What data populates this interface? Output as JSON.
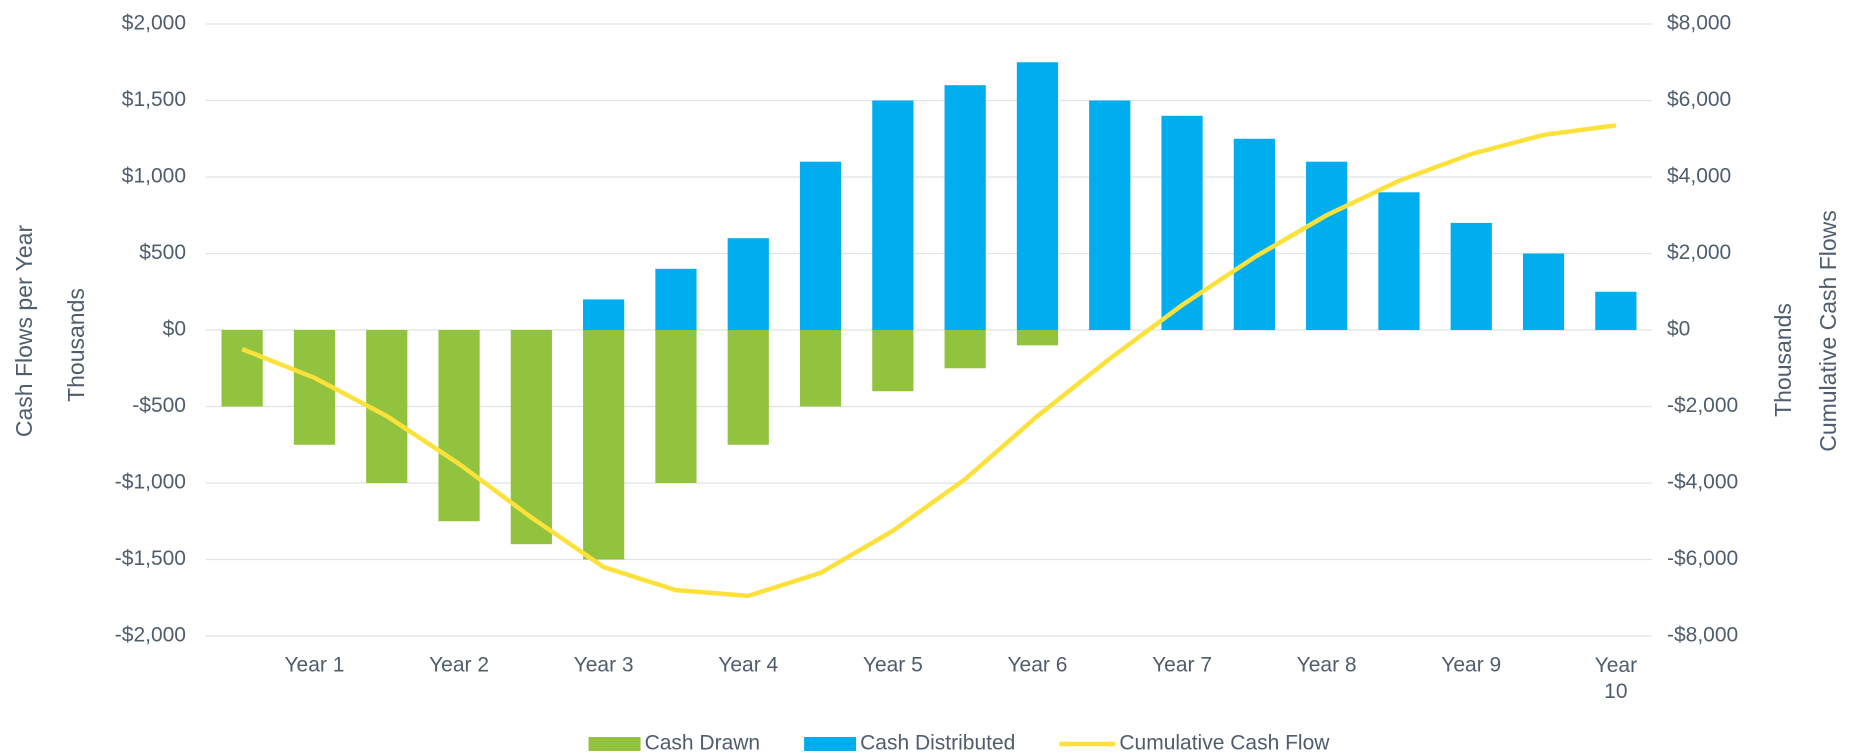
{
  "chart_data": {
    "type": "bar",
    "categories": [
      null,
      "Year 1",
      null,
      "Year 2",
      null,
      "Year 3",
      null,
      "Year 4",
      null,
      "Year 5",
      null,
      "Year 6",
      null,
      "Year 7",
      null,
      "Year 8",
      null,
      "Year 9",
      null,
      "Year 10"
    ],
    "series": [
      {
        "name": "Cash Drawn",
        "color": "#92c33e",
        "type": "bar",
        "values": [
          -500,
          -750,
          -1000,
          -1250,
          -1400,
          -1500,
          -1000,
          -750,
          -500,
          -400,
          -250,
          -100,
          null,
          null,
          null,
          null,
          null,
          null,
          null,
          null
        ]
      },
      {
        "name": "Cash Distributed",
        "color": "#00adee",
        "type": "bar",
        "values": [
          null,
          null,
          null,
          null,
          null,
          200,
          400,
          600,
          1100,
          1500,
          1600,
          1750,
          1500,
          1400,
          1250,
          1100,
          900,
          700,
          500,
          250
        ]
      },
      {
        "name": "Cumulative Cash Flow",
        "color": "#fde13b",
        "type": "line",
        "axis": "y2",
        "values": [
          -500,
          -1250,
          -2250,
          -3500,
          -4900,
          -6200,
          -6800,
          -6950,
          -6350,
          -5250,
          -3900,
          -2250,
          -750,
          650,
          1900,
          3000,
          3900,
          4600,
          5100,
          5350
        ]
      }
    ],
    "ylim": [
      -2000,
      2000
    ],
    "yticks": [
      {
        "value": -2000,
        "label": "-$2,000"
      },
      {
        "value": -1500,
        "label": "-$1,500"
      },
      {
        "value": -1000,
        "label": "-$1,000"
      },
      {
        "value": -500,
        "label": "-$500"
      },
      {
        "value": 0,
        "label": "$0"
      },
      {
        "value": 500,
        "label": "$500"
      },
      {
        "value": 1000,
        "label": "$1,000"
      },
      {
        "value": 1500,
        "label": "$1,500"
      },
      {
        "value": 2000,
        "label": "$2,000"
      }
    ],
    "y2lim": [
      -8000,
      8000
    ],
    "y2ticks": [
      {
        "value": -8000,
        "label": "-$8,000"
      },
      {
        "value": -6000,
        "label": "-$6,000"
      },
      {
        "value": -4000,
        "label": "-$4,000"
      },
      {
        "value": -2000,
        "label": "-$2,000"
      },
      {
        "value": 0,
        "label": "$0"
      },
      {
        "value": 2000,
        "label": "$2,000"
      },
      {
        "value": 4000,
        "label": "$4,000"
      },
      {
        "value": 6000,
        "label": "$6,000"
      },
      {
        "value": 8000,
        "label": "$8,000"
      }
    ],
    "ylabel": "Cash Flows per Year",
    "ylabel_units": "Thousands",
    "y2label": "Cumulative Cash Flows",
    "y2label_units": "Thousands",
    "grid": true,
    "legend": "bottom"
  }
}
